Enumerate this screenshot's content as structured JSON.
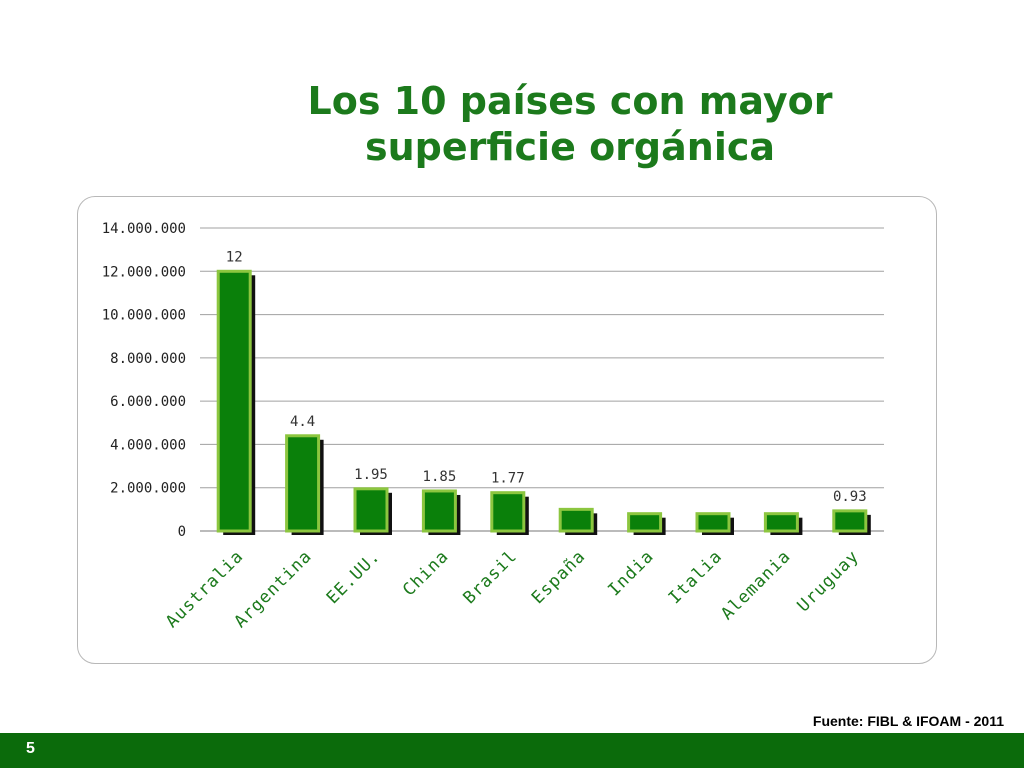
{
  "slide": {
    "title_line1": "Los 10 países con mayor",
    "title_line2": "superficie orgánica",
    "source": "Fuente: FIBL & IFOAM - 2011",
    "page_number": "5"
  },
  "colors": {
    "title": "#1c7a1c",
    "bar_fill": "#0a800a",
    "bar_border": "#8cc63f",
    "bar_shadow": "#111111",
    "footer": "#0b6b0b",
    "grid": "#a0a0a0",
    "label": "#333333"
  },
  "chart_data": {
    "type": "bar",
    "title": "",
    "xlabel": "",
    "ylabel": "",
    "ylim": [
      0,
      14000000
    ],
    "grid": true,
    "legend": "none",
    "yticks": [
      0,
      2000000,
      4000000,
      6000000,
      8000000,
      10000000,
      12000000,
      14000000
    ],
    "ytick_labels": [
      "0",
      "2.000.000",
      "4.000.000",
      "6.000.000",
      "8.000.000",
      "10.000.000",
      "12.000.000",
      "14.000.000"
    ],
    "categories": [
      "Australia",
      "Argentina",
      "EE.UU.",
      "China",
      "Brasil",
      "España",
      "India",
      "Italia",
      "Alemania",
      "Uruguay"
    ],
    "values": [
      12000000,
      4400000,
      1950000,
      1850000,
      1770000,
      1000000,
      800000,
      800000,
      800000,
      930000
    ],
    "data_labels": [
      "12",
      "4.4",
      "1.95",
      "1.85",
      "1.77",
      "",
      "",
      "",
      "",
      "0.93"
    ]
  }
}
